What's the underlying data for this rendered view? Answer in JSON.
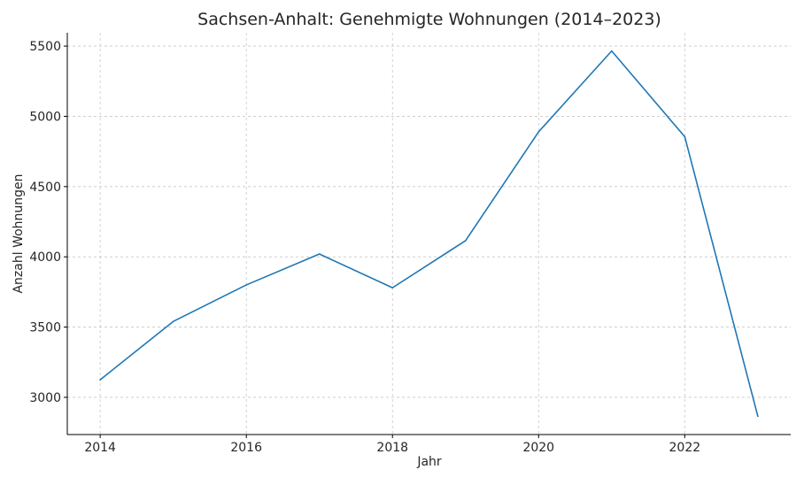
{
  "chart_data": {
    "type": "line",
    "title": "Sachsen-Anhalt: Genehmigte Wohnungen (2014–2023)",
    "xlabel": "Jahr",
    "ylabel": "Anzahl Wohnungen",
    "x": [
      2014,
      2015,
      2016,
      2017,
      2018,
      2019,
      2020,
      2021,
      2022,
      2023
    ],
    "series": [
      {
        "values": [
          3125,
          3540,
          3800,
          4020,
          3780,
          4115,
          4890,
          5465,
          4855,
          2865
        ],
        "color": "#1f77b4"
      }
    ],
    "xlim": [
      2013.55,
      2023.45
    ],
    "ylim": [
      2735,
      5595
    ],
    "x_ticks": [
      "2014",
      "2016",
      "2018",
      "2020",
      "2022"
    ],
    "y_ticks": [
      "3000",
      "3500",
      "4000",
      "4500",
      "5000",
      "5500"
    ],
    "grid": true,
    "legend": "none"
  }
}
